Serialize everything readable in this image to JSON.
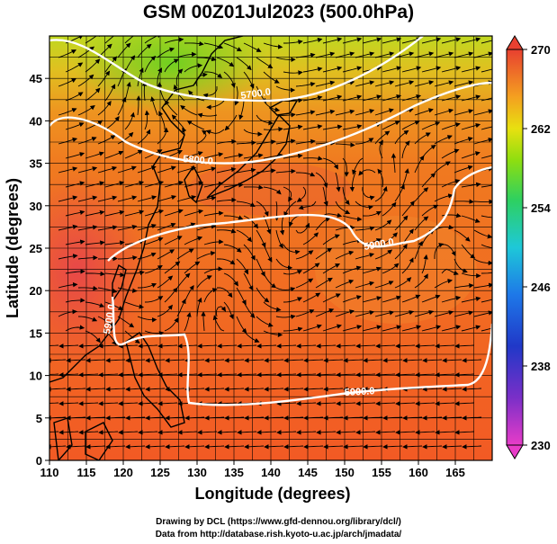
{
  "title": "GSM 00Z01Jul2023 (500.0hPa)",
  "x_axis_label": "Longitude (degrees)",
  "y_axis_label": "Latitude (degrees)",
  "x_ticks": [
    "110",
    "115",
    "120",
    "125",
    "130",
    "135",
    "140",
    "145",
    "150",
    "155",
    "160",
    "165"
  ],
  "y_ticks": [
    "0",
    "5",
    "10",
    "15",
    "20",
    "25",
    "30",
    "35",
    "40",
    "45"
  ],
  "colorbar": {
    "ticks": [
      "270",
      "262",
      "254",
      "246",
      "238",
      "230"
    ],
    "min": 230,
    "max": 270
  },
  "contour_labels": [
    "5700.0",
    "5800.0",
    "5900.0",
    "5900.0",
    "5900.0"
  ],
  "credits": {
    "line1": "Drawing by DCL (https://www.gfd-dennou.org/library/dcl/)",
    "line2": "Data from http://database.rish.kyoto-u.ac.jp/arch/jmadata/"
  },
  "chart_data": {
    "type": "heatmap",
    "variable": "temperature with streamlines and geopotential height contours",
    "x_range": [
      110,
      170
    ],
    "y_range": [
      0,
      50
    ],
    "color_range": [
      230,
      270
    ],
    "contour_levels": [
      5700,
      5800,
      5900
    ]
  }
}
